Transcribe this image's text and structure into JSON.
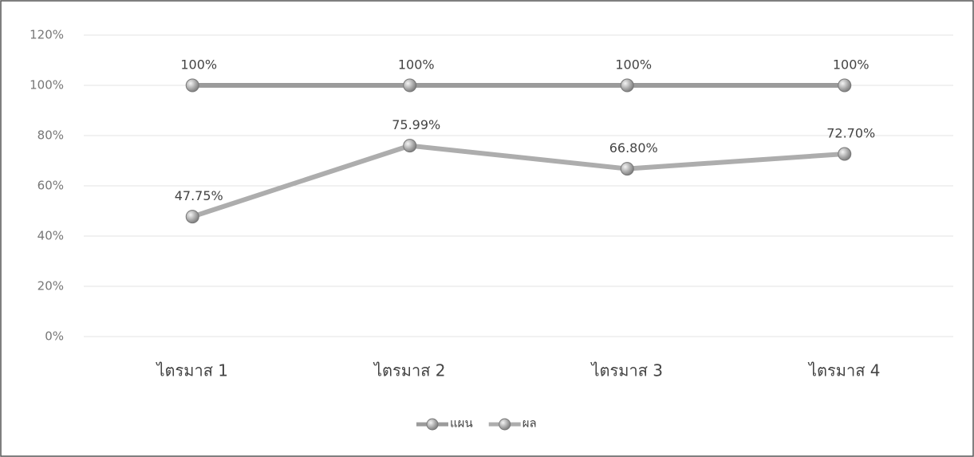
{
  "chart_data": {
    "type": "line",
    "categories": [
      "ไตรมาส 1",
      "ไตรมาส 2",
      "ไตรมาส 3",
      "ไตรมาส 4"
    ],
    "series": [
      {
        "name": "แผน",
        "color": "#9b9b9b",
        "values": [
          100,
          100,
          100,
          100
        ],
        "value_labels": [
          "100%",
          "100%",
          "100%",
          "100%"
        ]
      },
      {
        "name": "ผล",
        "color": "#adadad",
        "values": [
          47.75,
          75.99,
          66.8,
          72.7
        ],
        "value_labels": [
          "47.75%",
          "75.99%",
          "66.80%",
          "72.70%"
        ]
      }
    ],
    "ylim": [
      0,
      120
    ],
    "yticks": [
      {
        "value": 0,
        "label": "0%"
      },
      {
        "value": 20,
        "label": "20%"
      },
      {
        "value": 40,
        "label": "40%"
      },
      {
        "value": 60,
        "label": "60%"
      },
      {
        "value": 80,
        "label": "80%"
      },
      {
        "value": 100,
        "label": "100%"
      },
      {
        "value": 120,
        "label": "120%"
      }
    ],
    "grid": true,
    "legend": "bottom"
  }
}
